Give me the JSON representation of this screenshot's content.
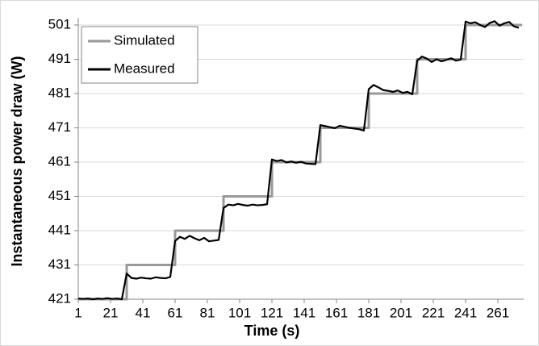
{
  "chart_data": {
    "type": "line",
    "xlabel": "Time (s)",
    "ylabel": "Instantaneous power draw (W)",
    "xlim": [
      1,
      277
    ],
    "xticks": [
      1,
      21,
      41,
      61,
      81,
      101,
      121,
      141,
      161,
      181,
      201,
      221,
      241,
      261
    ],
    "ylim": [
      421,
      503
    ],
    "yticks": [
      421,
      431,
      441,
      451,
      461,
      471,
      481,
      491,
      501
    ],
    "grid": true,
    "legend": "upper left",
    "series": [
      {
        "name": "Simulated",
        "color": "#999999",
        "x": [
          1,
          31,
          31,
          61,
          61,
          91,
          91,
          121,
          121,
          151,
          151,
          181,
          181,
          211,
          211,
          241,
          241,
          276
        ],
        "values": [
          421,
          421,
          431,
          431,
          441,
          441,
          451,
          451,
          461,
          461,
          471,
          471,
          481,
          481,
          491,
          491,
          501,
          501
        ]
      },
      {
        "name": "Measured",
        "color": "#000000",
        "x": [
          1,
          4,
          7,
          10,
          13,
          16,
          19,
          22,
          25,
          28,
          31,
          34,
          37,
          40,
          43,
          46,
          49,
          52,
          55,
          58,
          61,
          64,
          67,
          70,
          73,
          76,
          79,
          82,
          85,
          88,
          91,
          94,
          97,
          100,
          103,
          106,
          109,
          112,
          115,
          118,
          121,
          124,
          127,
          130,
          133,
          136,
          139,
          142,
          145,
          148,
          151,
          154,
          157,
          160,
          163,
          166,
          169,
          172,
          175,
          178,
          181,
          184,
          187,
          190,
          193,
          196,
          199,
          202,
          205,
          208,
          211,
          214,
          217,
          220,
          223,
          226,
          229,
          232,
          235,
          238,
          241,
          244,
          247,
          250,
          253,
          256,
          259,
          262,
          265,
          268,
          271,
          274
        ],
        "values": [
          421.2,
          421.1,
          421.2,
          421.0,
          421.2,
          421.1,
          421.3,
          421.1,
          421.2,
          421.0,
          428.5,
          427.2,
          427.0,
          427.3,
          427.1,
          427.0,
          427.4,
          427.2,
          427.1,
          427.5,
          438.0,
          439.2,
          438.6,
          439.5,
          438.8,
          438.2,
          438.9,
          437.9,
          438.1,
          438.3,
          447.6,
          448.6,
          448.4,
          448.8,
          448.5,
          448.3,
          448.6,
          448.4,
          448.5,
          448.7,
          461.8,
          461.3,
          461.6,
          460.9,
          461.2,
          460.8,
          461.1,
          460.6,
          460.5,
          460.4,
          471.8,
          471.5,
          471.2,
          470.9,
          471.6,
          471.3,
          471.0,
          470.8,
          470.6,
          470.2,
          482.3,
          483.5,
          482.8,
          482.0,
          481.8,
          481.5,
          481.9,
          481.2,
          481.5,
          480.8,
          490.6,
          491.8,
          491.2,
          490.2,
          491.0,
          490.4,
          490.8,
          491.3,
          490.6,
          490.9,
          502.0,
          501.5,
          501.8,
          501.0,
          500.4,
          501.6,
          502.1,
          500.8,
          501.5,
          501.9,
          500.6,
          500.2
        ]
      }
    ]
  }
}
